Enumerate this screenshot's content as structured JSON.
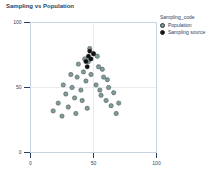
{
  "chart_data": {
    "type": "scatter",
    "title": "Sampling vs Population",
    "legend": "top-right",
    "legend_title": "Sampling_code",
    "grid": true,
    "xlim": [
      0,
      100
    ],
    "xticks": [
      0,
      50,
      100
    ],
    "ylim": [
      0,
      100
    ],
    "yticks": [
      0,
      50,
      100
    ],
    "series": [
      {
        "name": "Population",
        "color": "#7f9c9c",
        "marker": "circle",
        "x": [
          18,
          22,
          25,
          28,
          30,
          33,
          35,
          37,
          40,
          42,
          44,
          46,
          48,
          50,
          52,
          54,
          56,
          58,
          60,
          62,
          64,
          66,
          68,
          70,
          26,
          32,
          38,
          43,
          47,
          53,
          57,
          61,
          36,
          41,
          45,
          55
        ],
        "y": [
          32,
          38,
          28,
          45,
          35,
          50,
          42,
          58,
          48,
          62,
          55,
          70,
          60,
          76,
          52,
          66,
          44,
          58,
          40,
          50,
          36,
          46,
          30,
          38,
          52,
          60,
          68,
          72,
          80,
          74,
          64,
          56,
          30,
          40,
          34,
          48
        ]
      },
      {
        "name": "Sampling source",
        "color": "#111111",
        "marker": "circle",
        "x": [
          44,
          46,
          48,
          50,
          47,
          45
        ],
        "y": [
          70,
          74,
          72,
          76,
          78,
          66
        ]
      }
    ]
  }
}
